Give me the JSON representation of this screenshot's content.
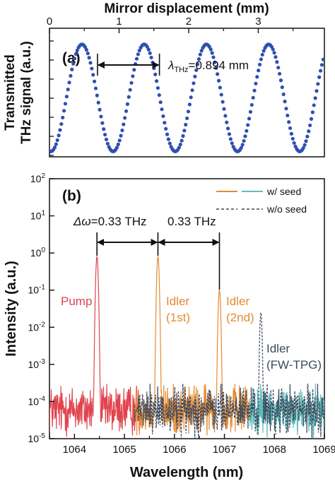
{
  "colors": {
    "pump": "#e0454f",
    "idler_1st": "#e58a33",
    "idler_2nd": "#e58a33",
    "fw_tpg": "#5fbdbd",
    "wo_seed": "#3e4a5c",
    "dots": "#2f4fb0",
    "arrow": "#111111"
  },
  "chart_data": [
    {
      "type": "scatter",
      "panel_label": "(a)",
      "xlabel_top": "Mirror displacement (mm)",
      "ylabel": [
        "Transmitted",
        "THz signal (a.u.)"
      ],
      "xlim": [
        0,
        3.95
      ],
      "xticks": [
        "0",
        "1",
        "2",
        "3"
      ],
      "ylim": [
        -0.05,
        1.15
      ],
      "signal": {
        "form": "0.5*(1 - cos(2*pi*(x - x0)/period))",
        "period_mm": 0.894,
        "x0_mm": 0.02,
        "x_step_mm": 0.019,
        "shape": "sinusoidal"
      },
      "annotation": {
        "symbol": "λ",
        "subscript": "THz",
        "value": "=0.894 mm",
        "from_x_mm": 0.69,
        "to_x_mm": 1.58
      },
      "grid": false
    },
    {
      "type": "line",
      "panel_label": "(b)",
      "xlabel": "Wavelength (nm)",
      "ylabel": "Intensity (a.u.)",
      "xlim": [
        1063.5,
        1069
      ],
      "xticks": [
        "1064",
        "1065",
        "1066",
        "1067",
        "1068",
        "1069"
      ],
      "ylim": [
        1e-05,
        100
      ],
      "yscale": "log",
      "yticks": [
        "10-5",
        "10-4",
        "10-3",
        "10-2",
        "10-1",
        "100",
        "101",
        "102"
      ],
      "legend": {
        "placement": "top-right",
        "items": [
          {
            "label": "w/ seed",
            "style": "solid"
          },
          {
            "label": "w/o seed",
            "style": "dashed"
          }
        ]
      },
      "peaks": [
        {
          "name": "Pump",
          "label": [
            "Pump"
          ],
          "x": 1064.45,
          "y": 0.8,
          "color_key": "pump"
        },
        {
          "name": "Idler 1st",
          "label": [
            "Idler",
            "(1st)"
          ],
          "x": 1065.67,
          "y": 0.8,
          "color_key": "idler_1st"
        },
        {
          "name": "Idler 2nd",
          "label": [
            "Idler",
            "(2nd)"
          ],
          "x": 1066.9,
          "y": 0.1,
          "color_key": "idler_2nd"
        },
        {
          "name": "Idler FW-TPG",
          "label": [
            "Idler",
            "(FW-TPG)"
          ],
          "x": 1067.73,
          "y": 0.025,
          "color_key": "wo_seed"
        }
      ],
      "noise_floor": {
        "typical": 6e-05,
        "min": 1e-05,
        "max": 0.0003
      },
      "segments": [
        {
          "color_key": "pump",
          "x": [
            1063.5,
            1065.3
          ]
        },
        {
          "color_key": "idler_1st",
          "x": [
            1065.2,
            1067.5
          ]
        },
        {
          "color_key": "fw_tpg",
          "x": [
            1067.5,
            1069
          ]
        },
        {
          "color_key": "wo_seed",
          "x": [
            1065.2,
            1069
          ],
          "dashed": true
        }
      ],
      "annotations": [
        {
          "symbol": "Δω",
          "value": "=0.33 THz",
          "from_x": 1064.45,
          "to_x": 1065.67
        },
        {
          "symbol": "",
          "value": "0.33 THz",
          "from_x": 1065.67,
          "to_x": 1066.9
        }
      ],
      "grid": false
    }
  ]
}
